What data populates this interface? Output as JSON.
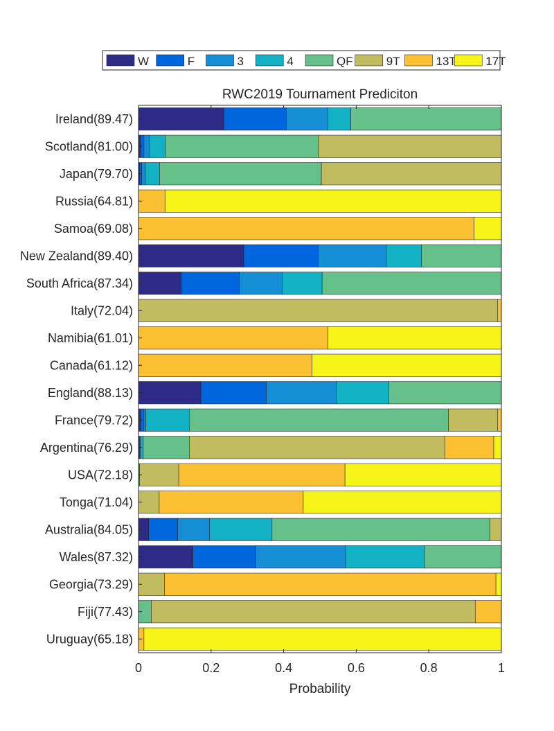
{
  "chart_data": {
    "type": "bar",
    "orientation": "horizontal",
    "stacked": true,
    "title": "RWC2019 Tournament Prediciton",
    "xlabel": "Probability",
    "ylabel": "",
    "xlim": [
      0,
      1
    ],
    "xticks": [
      "0",
      "0.2",
      "0.4",
      "0.6",
      "0.8",
      "1"
    ],
    "legend_position": "top",
    "categories": [
      "Ireland(89.47)",
      "Scotland(81.00)",
      "Japan(79.70)",
      "Russia(64.81)",
      "Samoa(69.08)",
      "New Zealand(89.40)",
      "South Africa(87.34)",
      "Italy(72.04)",
      "Namibia(61.01)",
      "Canada(61.12)",
      "England(88.13)",
      "France(79.72)",
      "Argentina(76.29)",
      "USA(72.18)",
      "Tonga(71.04)",
      "Australia(84.05)",
      "Wales(87.32)",
      "Georgia(73.29)",
      "Fiji(77.43)",
      "Uruguay(65.18)"
    ],
    "series": [
      {
        "name": "W",
        "color": "#2e2b87",
        "values": [
          0.235,
          0.005,
          0.003,
          0,
          0,
          0.29,
          0.118,
          0,
          0,
          0,
          0.172,
          0.005,
          0.001,
          0,
          0,
          0.028,
          0.15,
          0,
          0,
          0
        ]
      },
      {
        "name": "F",
        "color": "#0066dd",
        "values": [
          0.172,
          0.01,
          0.006,
          0,
          0,
          0.205,
          0.16,
          0,
          0,
          0,
          0.18,
          0.01,
          0.002,
          0,
          0,
          0.08,
          0.173,
          0,
          0,
          0
        ]
      },
      {
        "name": "3",
        "color": "#168ed6",
        "values": [
          0.115,
          0.015,
          0.01,
          0,
          0,
          0.188,
          0.118,
          0,
          0,
          0,
          0.193,
          0.005,
          0.002,
          0,
          0,
          0.088,
          0.248,
          0,
          0,
          0
        ]
      },
      {
        "name": "4",
        "color": "#12b1c4",
        "values": [
          0.063,
          0.044,
          0.039,
          0,
          0,
          0.097,
          0.11,
          0,
          0,
          0,
          0.145,
          0.12,
          0.008,
          0,
          0,
          0.172,
          0.217,
          0,
          0,
          0
        ]
      },
      {
        "name": "QF",
        "color": "#65c08a",
        "values": [
          0.415,
          0.422,
          0.446,
          0,
          0,
          0.22,
          0.494,
          0,
          0,
          0,
          0.31,
          0.714,
          0.127,
          0.003,
          0,
          0.6,
          0.212,
          0,
          0.035,
          0
        ]
      },
      {
        "name": "9T",
        "color": "#c2bc60",
        "values": [
          0,
          0.504,
          0.496,
          0,
          0,
          0,
          0,
          0.99,
          0,
          0,
          0,
          0.136,
          0.704,
          0.108,
          0.057,
          0.032,
          0,
          0.072,
          0.893,
          0
        ]
      },
      {
        "name": "13T",
        "color": "#fcc132",
        "values": [
          0,
          0,
          0,
          0.073,
          0.925,
          0,
          0,
          0.01,
          0.522,
          0.478,
          0,
          0.01,
          0.135,
          0.458,
          0.397,
          0,
          0,
          0.913,
          0.072,
          0.015
        ]
      },
      {
        "name": "17T",
        "color": "#f6f418",
        "values": [
          0,
          0,
          0,
          0.927,
          0.075,
          0,
          0,
          0,
          0.478,
          0.522,
          0,
          0,
          0.021,
          0.431,
          0.546,
          0,
          0,
          0.015,
          0,
          0.985
        ]
      }
    ]
  }
}
